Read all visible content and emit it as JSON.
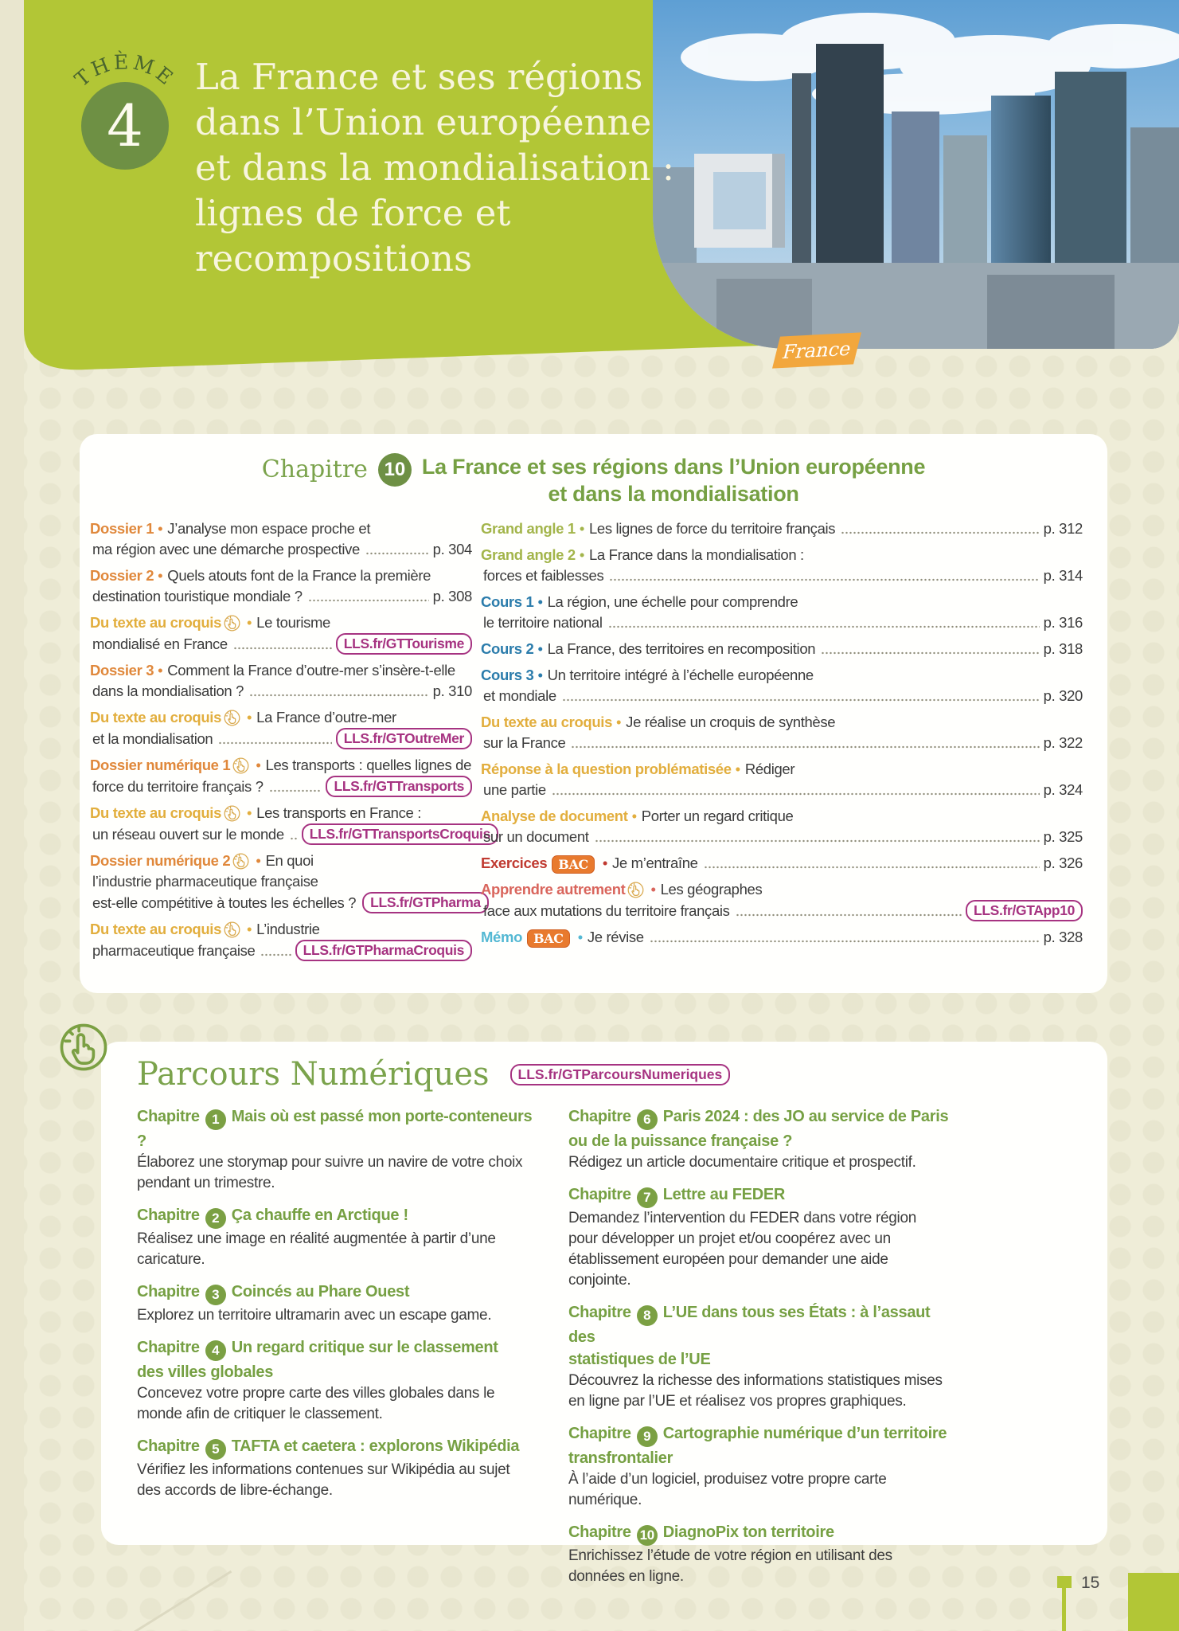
{
  "theme": {
    "label": "THÈME",
    "number": "4",
    "title_lines": [
      "La France et ses régions",
      "dans l’Union européenne",
      "et dans la mondialisation :",
      "lignes de force et",
      "recompositions"
    ]
  },
  "region_tag": "France",
  "badges": {
    "bac": "BAC"
  },
  "chapter": {
    "label": "Chapitre",
    "number": "10",
    "title_lines": [
      "La France et ses régions dans l’Union européenne",
      "et dans la mondialisation"
    ],
    "toc_left": [
      {
        "label": "Dossier 1",
        "color": "orange",
        "icon": false,
        "bac": false,
        "lines": [
          "J’analyse mon espace proche et",
          "ma région avec une démarche prospective"
        ],
        "dots": true,
        "ref": "p. 304",
        "ref_kind": "page"
      },
      {
        "label": "Dossier 2",
        "color": "orange",
        "icon": false,
        "bac": false,
        "lines": [
          "Quels atouts font de la France la première",
          "destination touristique mondiale ?"
        ],
        "dots": true,
        "ref": "p. 308",
        "ref_kind": "page"
      },
      {
        "label": "Du texte au croquis",
        "color": "gold",
        "icon": true,
        "bac": false,
        "lines": [
          "Le tourisme",
          "mondialisé en France"
        ],
        "dots": true,
        "ref": "LLS.fr/GTTourisme",
        "ref_kind": "link"
      },
      {
        "label": "Dossier 3",
        "color": "orange",
        "icon": false,
        "bac": false,
        "lines": [
          "Comment la France d’outre-mer s’insère-t-elle",
          "dans la mondialisation ?"
        ],
        "dots": true,
        "ref": "p. 310",
        "ref_kind": "page"
      },
      {
        "label": "Du texte au croquis",
        "color": "gold",
        "icon": true,
        "bac": false,
        "lines": [
          "La France d’outre-mer",
          "et la mondialisation"
        ],
        "dots": true,
        "ref": "LLS.fr/GTOutreMer",
        "ref_kind": "link"
      },
      {
        "label": "Dossier numérique 1",
        "color": "orange",
        "icon": true,
        "bac": false,
        "lines": [
          "Les transports : quelles lignes de",
          "force du territoire français ?"
        ],
        "dots": true,
        "ref": "LLS.fr/GTTransports",
        "ref_kind": "link"
      },
      {
        "label": "Du texte au croquis",
        "color": "gold",
        "icon": true,
        "bac": false,
        "lines": [
          "Les transports en France :",
          "un réseau ouvert sur le monde"
        ],
        "dots": true,
        "ref": "LLS.fr/GTTransportsCroquis",
        "ref_kind": "link"
      },
      {
        "label": "Dossier numérique 2",
        "color": "orange",
        "icon": true,
        "bac": false,
        "lines": [
          "En quoi",
          "l’industrie pharmaceutique française",
          "est-elle compétitive à toutes les échelles ?"
        ],
        "dots": false,
        "ref": "LLS.fr/GTPharma",
        "ref_kind": "link"
      },
      {
        "label": "Du texte au croquis",
        "color": "gold",
        "icon": true,
        "bac": false,
        "lines": [
          "L’industrie",
          "pharmaceutique française"
        ],
        "dots": true,
        "ref": "LLS.fr/GTPharmaCroquis",
        "ref_kind": "link"
      }
    ],
    "toc_right": [
      {
        "label": "Grand angle 1",
        "color": "green_light",
        "icon": false,
        "bac": false,
        "lines": [
          "Les lignes de force du territoire français"
        ],
        "dots": true,
        "ref": "p. 312",
        "ref_kind": "page"
      },
      {
        "label": "Grand angle 2",
        "color": "green_light",
        "icon": false,
        "bac": false,
        "lines": [
          "La France dans la mondialisation :",
          "forces et faiblesses"
        ],
        "dots": true,
        "ref": "p. 314",
        "ref_kind": "page"
      },
      {
        "label": "Cours 1",
        "color": "blue",
        "icon": false,
        "bac": false,
        "lines": [
          "La région, une échelle pour comprendre",
          "le territoire national"
        ],
        "dots": true,
        "ref": "p. 316",
        "ref_kind": "page"
      },
      {
        "label": "Cours 2",
        "color": "blue",
        "icon": false,
        "bac": false,
        "lines": [
          "La France, des territoires en recomposition"
        ],
        "dots": true,
        "ref": "p. 318",
        "ref_kind": "page"
      },
      {
        "label": "Cours 3",
        "color": "blue",
        "icon": false,
        "bac": false,
        "lines": [
          "Un territoire intégré à l’échelle européenne",
          "et mondiale"
        ],
        "dots": true,
        "ref": "p. 320",
        "ref_kind": "page"
      },
      {
        "label": "Du texte au croquis",
        "color": "gold",
        "icon": false,
        "bac": false,
        "lines": [
          "Je réalise un croquis de synthèse",
          "sur la France"
        ],
        "dots": true,
        "ref": "p. 322",
        "ref_kind": "page"
      },
      {
        "label": "Réponse à la question problématisée",
        "color": "gold",
        "icon": false,
        "bac": false,
        "lines": [
          "Rédiger",
          "une partie"
        ],
        "dots": true,
        "ref": "p. 324",
        "ref_kind": "page"
      },
      {
        "label": "Analyse de document",
        "color": "gold",
        "icon": false,
        "bac": false,
        "lines": [
          "Porter un regard critique",
          "sur un document"
        ],
        "dots": true,
        "ref": "p. 325",
        "ref_kind": "page"
      },
      {
        "label": "Exercices",
        "color": "red",
        "icon": false,
        "bac": true,
        "lines": [
          "Je m’entraîne"
        ],
        "dots": true,
        "ref": "p. 326",
        "ref_kind": "page"
      },
      {
        "label": "Apprendre autrement",
        "color": "coral",
        "icon": true,
        "bac": false,
        "lines": [
          "Les géographes",
          "face aux mutations du territoire français"
        ],
        "dots": true,
        "ref": "LLS.fr/GTApp10",
        "ref_kind": "link"
      },
      {
        "label": "Mémo",
        "color": "cyan",
        "icon": false,
        "bac": true,
        "lines": [
          "Je révise"
        ],
        "dots": true,
        "ref": "p. 328",
        "ref_kind": "page"
      }
    ]
  },
  "parcours": {
    "title": "Parcours Numériques",
    "link": "LLS.fr/GTParcoursNumeriques",
    "item_label": "Chapitre",
    "left": [
      {
        "number": "1",
        "title_lines": [
          "Mais où est passé mon porte-conteneurs ?"
        ],
        "description": "Élaborez une storymap pour suivre un navire de votre choix pendant un trimestre."
      },
      {
        "number": "2",
        "title_lines": [
          "Ça chauffe en Arctique !"
        ],
        "description": "Réalisez une image en réalité augmentée à partir d’une caricature."
      },
      {
        "number": "3",
        "title_lines": [
          "Coincés au Phare Ouest"
        ],
        "description": "Explorez un territoire ultramarin avec un escape game."
      },
      {
        "number": "4",
        "title_lines": [
          "Un regard critique sur le classement",
          "des villes globales"
        ],
        "description": "Concevez votre propre carte des villes globales dans le monde afin de critiquer le classement."
      },
      {
        "number": "5",
        "title_lines": [
          "TAFTA et caetera : explorons Wikipédia"
        ],
        "description": "Vérifiez les informations contenues sur Wikipédia au sujet des accords de libre-échange."
      }
    ],
    "right": [
      {
        "number": "6",
        "title_lines": [
          "Paris 2024 : des JO au service de Paris",
          "ou de la puissance française ?"
        ],
        "description": "Rédigez un article documentaire critique et prospectif."
      },
      {
        "number": "7",
        "title_lines": [
          "Lettre au FEDER"
        ],
        "description": "Demandez l’intervention du FEDER dans votre région pour développer un projet et/ou coopérez avec un établissement européen pour demander une aide conjointe."
      },
      {
        "number": "8",
        "title_lines": [
          "L’UE dans tous ses États : à l’assaut des",
          "statistiques de l’UE"
        ],
        "description": "Découvrez la richesse des informations statistiques mises en ligne par l’UE et réalisez vos propres graphiques."
      },
      {
        "number": "9",
        "title_lines": [
          "Cartographie numérique d’un territoire",
          "transfrontalier"
        ],
        "description": "À l’aide d’un logiciel, produisez votre propre carte numérique."
      },
      {
        "number": "10",
        "title_lines": [
          "DiagnoPix ton territoire"
        ],
        "description": "Enrichissez l’étude de votre région en utilisant des données en ligne."
      }
    ]
  },
  "footer": {
    "page_number": "15"
  },
  "colors": {
    "lime": "#b2c636",
    "dark_green": "#6e9044",
    "olive": "#76a043",
    "orange": "#e0883b",
    "gold": "#e2ae3d",
    "green_light": "#a3b54b",
    "blue": "#2b7cab",
    "red": "#c03a30",
    "coral": "#d9655c",
    "cyan": "#54b8d3",
    "magenta": "#a63381",
    "bac_orange": "#e87a2e",
    "page_bg": "#efedd8",
    "text": "#3b3b3b"
  }
}
